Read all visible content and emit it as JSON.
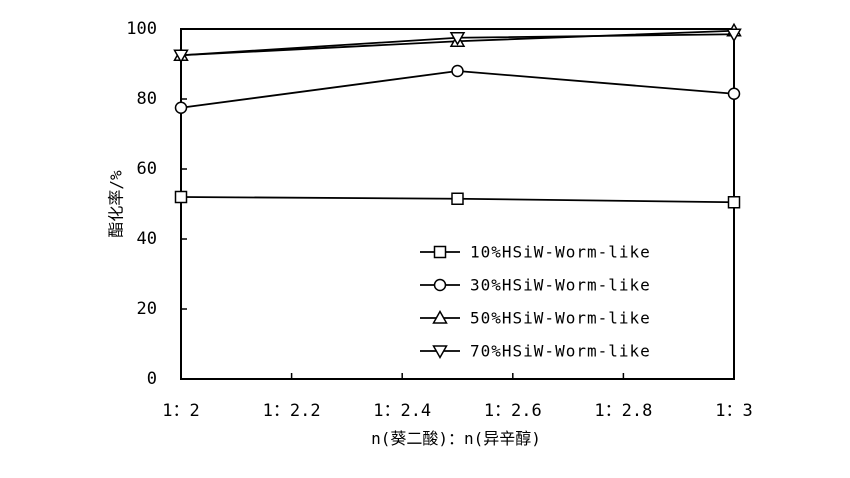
{
  "chart_data": {
    "type": "line",
    "title": "",
    "xlabel": "n(葵二酸)：n(异辛醇)",
    "ylabel": "酯化率/%",
    "x_ticks": [
      "1：2",
      "1：2.2",
      "1：2.4",
      "1：2.6",
      "1：2.8",
      "1：3"
    ],
    "x_tick_values": [
      2.0,
      2.2,
      2.4,
      2.6,
      2.8,
      3.0
    ],
    "y_ticks": [
      "0",
      "20",
      "40",
      "60",
      "80",
      "100"
    ],
    "y_tick_values": [
      0,
      20,
      40,
      60,
      80,
      100
    ],
    "xlim": [
      2.0,
      3.0
    ],
    "ylim": [
      0,
      100
    ],
    "grid": false,
    "legend_position": "lower-right",
    "x": [
      2.0,
      2.5,
      3.0
    ],
    "series": [
      {
        "name": "10%HSiW-Worm-like",
        "marker": "square",
        "values": [
          52,
          51.5,
          50.5
        ]
      },
      {
        "name": "30%HSiW-Worm-like",
        "marker": "circle",
        "values": [
          77.5,
          88,
          81.5
        ]
      },
      {
        "name": "50%HSiW-Worm-like",
        "marker": "triangle-up",
        "values": [
          92.5,
          96.5,
          99.5
        ]
      },
      {
        "name": "70%HSiW-Worm-like",
        "marker": "triangle-down",
        "values": [
          92.5,
          97.5,
          98.5
        ]
      }
    ]
  }
}
